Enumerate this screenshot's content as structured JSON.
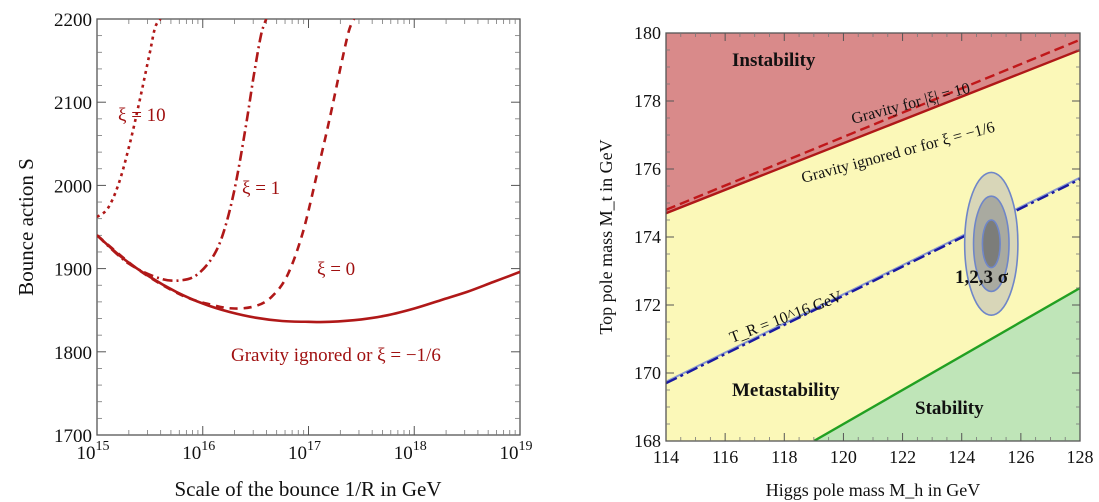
{
  "chart_data": [
    {
      "type": "line",
      "ylabel": "Bounce action S",
      "xlabel": "Scale of the bounce 1/R in GeV",
      "x_scale": "log10",
      "xlim": [
        15,
        19
      ],
      "ylim": [
        1700,
        2200
      ],
      "x_ticks": [
        15,
        16,
        17,
        18,
        19
      ],
      "x_tick_base": "10",
      "y_ticks": [
        1700,
        1800,
        1900,
        2000,
        2100,
        2200
      ],
      "color": "#b01818",
      "series": [
        {
          "name": "Gravity ignored or ξ = −1/6",
          "dash": "solid",
          "x": [
            15.0,
            15.25,
            15.5,
            15.75,
            16.0,
            16.25,
            16.5,
            16.75,
            17.0,
            17.2,
            17.5,
            17.75,
            18.0,
            18.25,
            18.5,
            18.75,
            19.0
          ],
          "y": [
            1940,
            1912,
            1890,
            1872,
            1858,
            1848,
            1841,
            1837,
            1836,
            1836,
            1839,
            1844,
            1852,
            1862,
            1872,
            1884,
            1896
          ]
        },
        {
          "name": "ξ = 0",
          "dash": "8,6",
          "x": [
            15.0,
            15.4,
            15.8,
            16.1,
            16.3,
            16.5,
            16.65,
            16.8,
            16.95,
            17.1,
            17.2,
            17.3,
            17.38,
            17.43
          ],
          "y": [
            1940,
            1898,
            1868,
            1856,
            1852,
            1855,
            1866,
            1892,
            1945,
            2025,
            2080,
            2140,
            2185,
            2200
          ]
        },
        {
          "name": "ξ = 1",
          "dash": "10,4,2,4",
          "x": [
            15.0,
            15.3,
            15.6,
            15.8,
            15.95,
            16.1,
            16.2,
            16.3,
            16.4,
            16.48,
            16.55,
            16.6
          ],
          "y": [
            1940,
            1906,
            1888,
            1886,
            1893,
            1915,
            1945,
            1995,
            2065,
            2130,
            2180,
            2200
          ]
        },
        {
          "name": "ξ = 10",
          "dash": "3,4",
          "x": [
            15.0,
            15.1,
            15.2,
            15.3,
            15.4,
            15.5,
            15.55,
            15.6
          ],
          "y": [
            1962,
            1972,
            2000,
            2045,
            2100,
            2160,
            2190,
            2200
          ]
        }
      ],
      "annotations": [
        "ξ = 10",
        "ξ = 1",
        "ξ = 0",
        "Gravity ignored or ξ = −1/6"
      ]
    },
    {
      "type": "area",
      "xlabel": "Higgs pole mass M_h in GeV",
      "ylabel": "Top pole mass M_t in GeV",
      "xlim": [
        114,
        128
      ],
      "ylim": [
        168,
        180
      ],
      "x_ticks": [
        114,
        116,
        118,
        120,
        122,
        124,
        126,
        128
      ],
      "y_ticks": [
        168,
        170,
        172,
        174,
        176,
        178,
        180
      ],
      "regions": [
        {
          "name": "Instability",
          "color": "#d98a8a"
        },
        {
          "name": "Metastability",
          "color": "#fbf8b8"
        },
        {
          "name": "Stability",
          "color": "#bfe5b8"
        }
      ],
      "lines": [
        {
          "label": "Gravity ignored or for ξ = −1/6",
          "style": "solid",
          "color": "#b01818",
          "x": [
            114,
            128
          ],
          "y": [
            174.7,
            179.5
          ]
        },
        {
          "label": "Gravity for |ξ| = 10",
          "style": "dashed",
          "color": "#c0181a",
          "x": [
            114,
            128
          ],
          "y": [
            174.8,
            179.8
          ]
        },
        {
          "label": "T_R = 10^16 GeV",
          "style": "dash-dot",
          "color": "#1a1aa0",
          "x": [
            114,
            128
          ],
          "y": [
            169.7,
            175.7
          ]
        },
        {
          "label": "",
          "style": "solid",
          "color": "#22a022",
          "x": [
            119,
            128
          ],
          "y": [
            168,
            172.5
          ]
        }
      ],
      "ellipse": {
        "label": "1,2,3 σ",
        "center": [
          125.0,
          173.8
        ],
        "sigma_mh": [
          0.3,
          0.6,
          0.9
        ],
        "sigma_mt": [
          0.7,
          1.4,
          2.1
        ]
      }
    }
  ]
}
